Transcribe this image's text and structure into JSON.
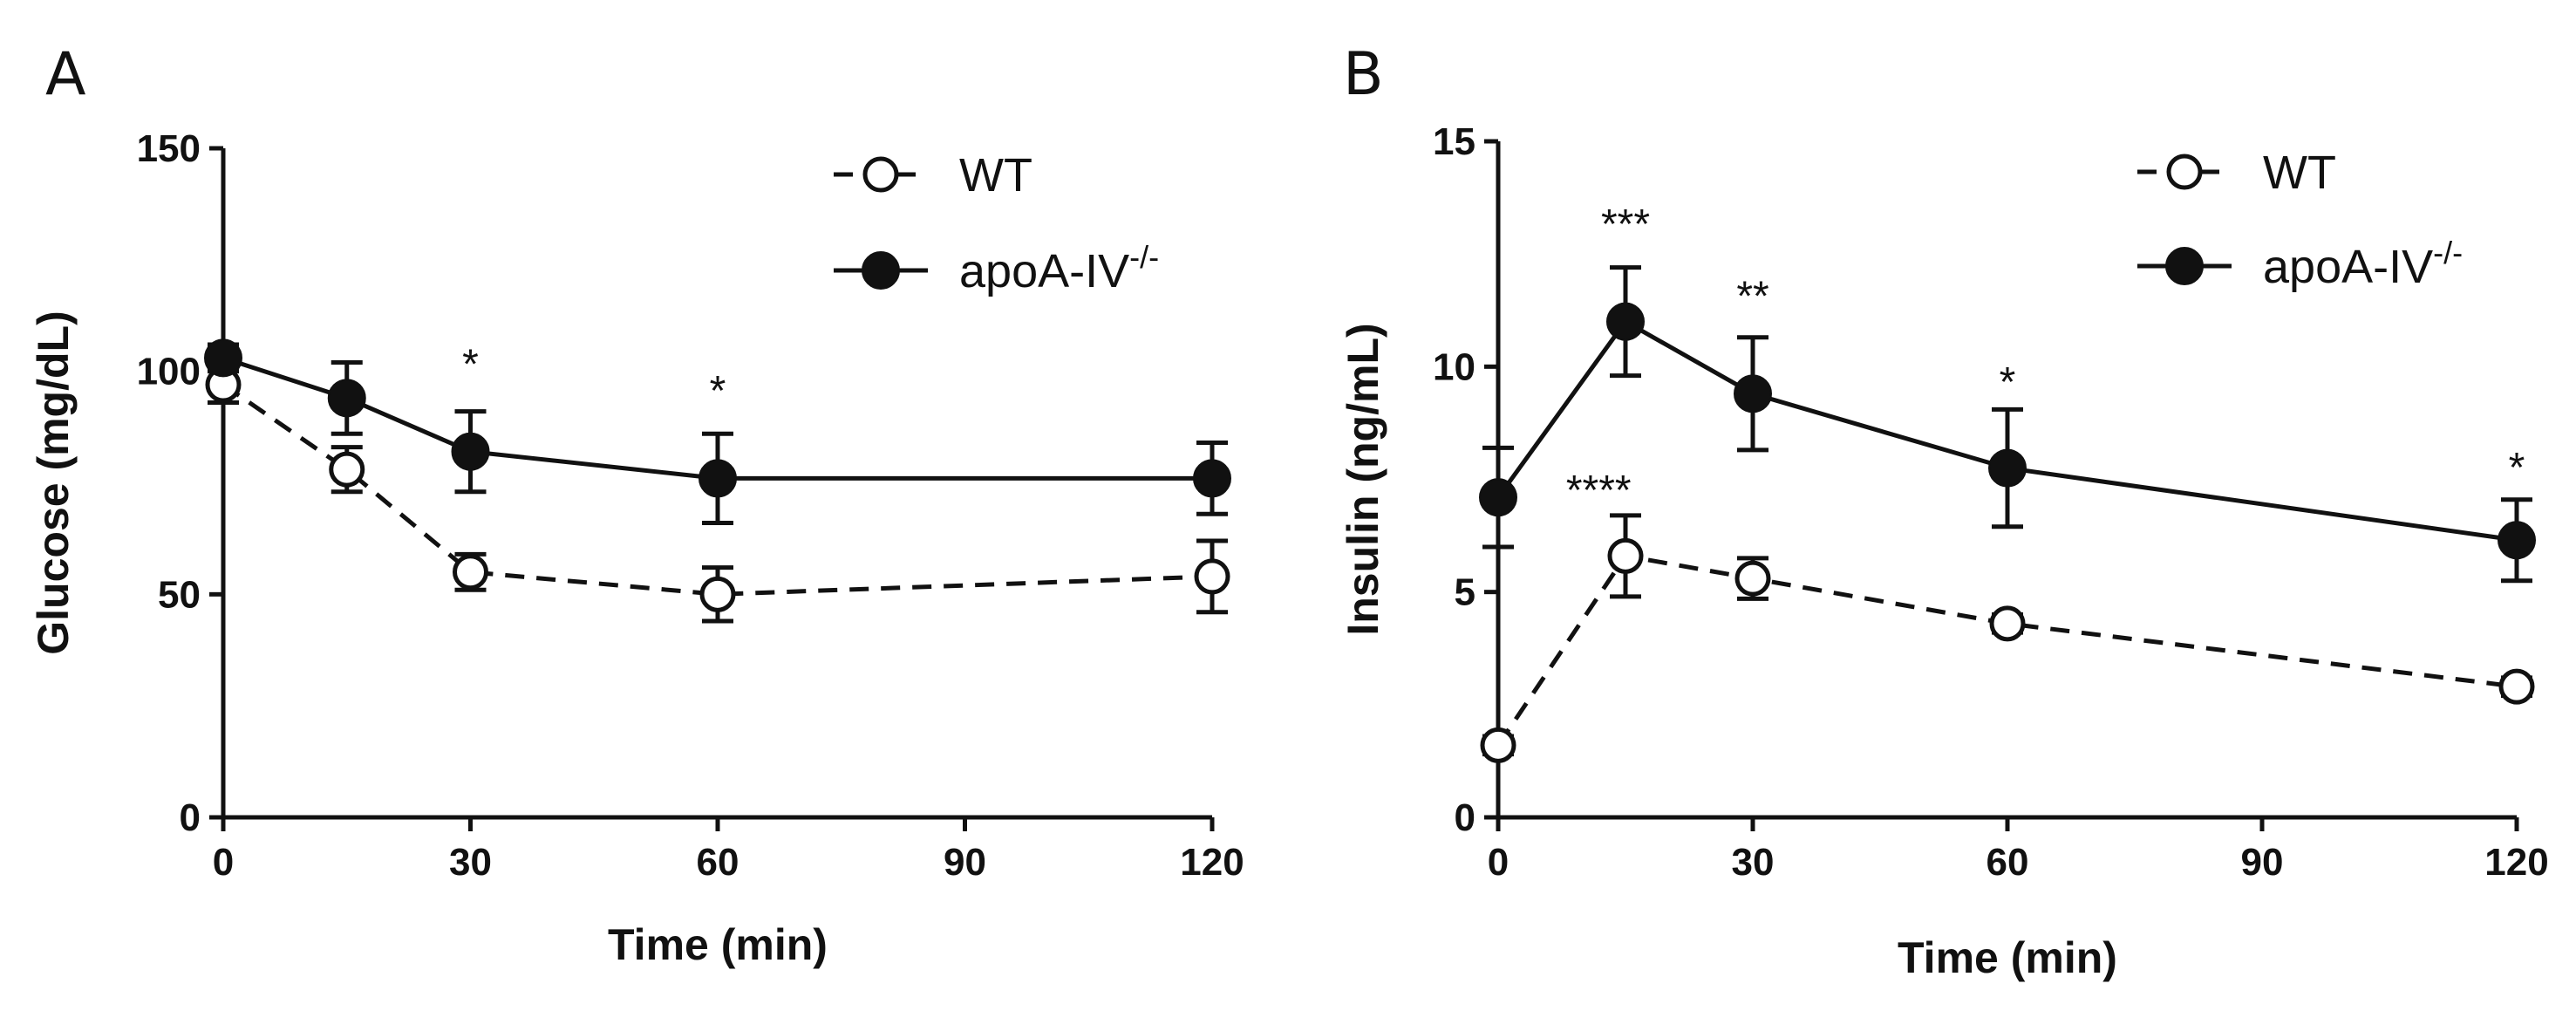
{
  "chart_data": [
    {
      "type": "line",
      "panel": "A",
      "xlabel": "Time (min)",
      "ylabel": "Glucose (mg/dL)",
      "xlim": [
        0,
        120
      ],
      "ylim": [
        0,
        150
      ],
      "xticks": [
        0,
        30,
        60,
        90,
        120
      ],
      "yticks": [
        0,
        50,
        100,
        150
      ],
      "legend": {
        "position": "top-right",
        "items": [
          {
            "label": "WT",
            "sup": "",
            "style": "dashed",
            "marker": "open-circle"
          },
          {
            "label": "apoA-IV",
            "sup": "-/-",
            "style": "solid",
            "marker": "filled-circle"
          }
        ]
      },
      "series": [
        {
          "name": "WT",
          "style": "dashed",
          "marker": "open-circle",
          "x": [
            0,
            15,
            30,
            60,
            120
          ],
          "y": [
            97,
            78,
            55,
            50,
            54
          ],
          "err": [
            4,
            5,
            4,
            6,
            8
          ]
        },
        {
          "name": "apoA-IV-/-",
          "style": "solid",
          "marker": "filled-circle",
          "x": [
            0,
            15,
            30,
            60,
            120
          ],
          "y": [
            103,
            94,
            82,
            76,
            76
          ],
          "err": [
            3,
            8,
            9,
            10,
            8
          ]
        }
      ],
      "annotations": [
        {
          "text": "*",
          "x": 30,
          "y": 102
        },
        {
          "text": "*",
          "x": 60,
          "y": 96
        }
      ]
    },
    {
      "type": "line",
      "panel": "B",
      "xlabel": "Time (min)",
      "ylabel": "Insulin (ng/mL)",
      "xlim": [
        0,
        120
      ],
      "ylim": [
        0,
        15
      ],
      "xticks": [
        0,
        30,
        60,
        90,
        120
      ],
      "yticks": [
        0,
        5,
        10,
        15
      ],
      "legend": {
        "position": "top-right",
        "items": [
          {
            "label": "WT",
            "sup": "",
            "style": "dashed",
            "marker": "open-circle"
          },
          {
            "label": "apoA-IV",
            "sup": "-/-",
            "style": "solid",
            "marker": "filled-circle"
          }
        ]
      },
      "series": [
        {
          "name": "WT",
          "style": "dashed",
          "marker": "open-circle",
          "x": [
            0,
            15,
            30,
            60,
            120
          ],
          "y": [
            1.6,
            5.8,
            5.3,
            4.3,
            2.9
          ],
          "err": [
            0.2,
            0.9,
            0.45,
            0.2,
            0.2
          ]
        },
        {
          "name": "apoA-IV-/-",
          "style": "solid",
          "marker": "filled-circle",
          "x": [
            0,
            15,
            30,
            60,
            120
          ],
          "y": [
            7.1,
            11.0,
            9.4,
            7.75,
            6.15
          ],
          "err": [
            1.1,
            1.2,
            1.25,
            1.3,
            0.9
          ]
        }
      ],
      "annotations": [
        {
          "text": "****",
          "x": 8,
          "y": 7.3
        },
        {
          "text": "***",
          "x": 15,
          "y": 13.2
        },
        {
          "text": "**",
          "x": 30,
          "y": 11.6
        },
        {
          "text": "*",
          "x": 60,
          "y": 9.7
        },
        {
          "text": "*",
          "x": 120,
          "y": 7.8
        }
      ]
    }
  ]
}
